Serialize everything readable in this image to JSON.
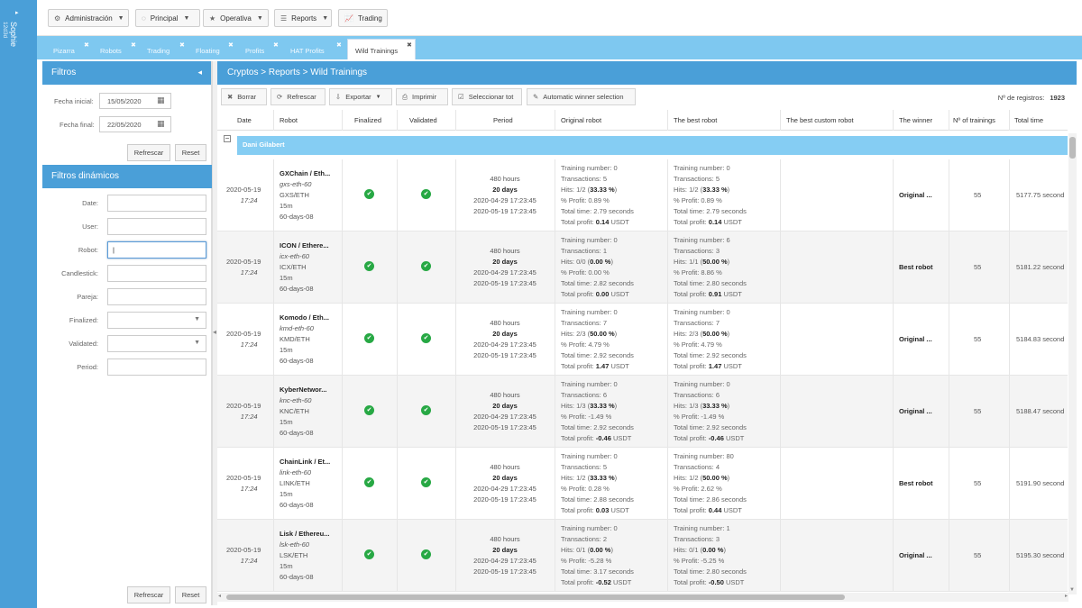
{
  "user": {
    "name": "Sophie",
    "sub": "12d3d"
  },
  "topmenu": [
    {
      "label": "Administración",
      "icon": "gear-icon",
      "glyph": "⚙",
      "dropdown": true
    },
    {
      "label": "Principal",
      "icon": "circle-icon",
      "glyph": "◌",
      "dropdown": true
    },
    {
      "label": "Operativa",
      "icon": "star-icon",
      "glyph": "★",
      "dropdown": true
    },
    {
      "label": "Reports",
      "icon": "list-icon",
      "glyph": "☰",
      "dropdown": true
    },
    {
      "label": "Trading",
      "icon": "chart-icon",
      "glyph": "📈",
      "dropdown": false
    }
  ],
  "tabs": [
    {
      "label": "Pizarra",
      "active": false
    },
    {
      "label": "Robots",
      "active": false
    },
    {
      "label": "Trading",
      "active": false
    },
    {
      "label": "Floating",
      "active": false
    },
    {
      "label": "Profits",
      "active": false
    },
    {
      "label": "HAT Profits",
      "active": false
    },
    {
      "label": "Wild Trainings",
      "active": true
    }
  ],
  "filters": {
    "title": "Filtros",
    "fecha_inicial_label": "Fecha inicial:",
    "fecha_inicial": "15/05/2020",
    "fecha_final_label": "Fecha final:",
    "fecha_final": "22/05/2020",
    "refresh_label": "Refrescar",
    "reset_label": "Reset",
    "dyn_title": "Filtros dinámicos",
    "dyn_fields": [
      {
        "label": "Date:",
        "type": "text"
      },
      {
        "label": "User:",
        "type": "text"
      },
      {
        "label": "Robot:",
        "type": "text",
        "focus": true
      },
      {
        "label": "Candlestick:",
        "type": "text"
      },
      {
        "label": "Pareja:",
        "type": "text"
      },
      {
        "label": "Finalized:",
        "type": "select"
      },
      {
        "label": "Validated:",
        "type": "select"
      },
      {
        "label": "Period:",
        "type": "text"
      }
    ]
  },
  "main": {
    "breadcrumb": "Cryptos > Reports > Wild Trainings",
    "toolbar": [
      {
        "label": "Borrar",
        "icon": "close-icon",
        "glyph": "✖"
      },
      {
        "label": "Refrescar",
        "icon": "refresh-icon",
        "glyph": "⟳"
      },
      {
        "label": "Exportar",
        "icon": "export-icon",
        "glyph": "⇩",
        "dropdown": true
      },
      {
        "label": "Imprimir",
        "icon": "print-icon",
        "glyph": "⎙"
      },
      {
        "label": "Seleccionar tot",
        "icon": "checkbox-icon",
        "glyph": "☑"
      },
      {
        "label": "Automatic winner selection",
        "icon": "wand-icon",
        "glyph": "✎"
      }
    ],
    "records_label": "Nº de registros:",
    "records_count": "1923",
    "columns": [
      "Date",
      "Robot",
      "Finalized",
      "Validated",
      "Period",
      "Original robot",
      "The best robot",
      "The best custom robot",
      "The winner",
      "Nº of trainings",
      "Total time"
    ],
    "group": "Dani Gilabert",
    "rows": [
      {
        "date": "2020-05-19",
        "time": "17:24",
        "robot_name": "GXChain / Eth...",
        "robot_id": "gxs-eth-60",
        "pair": "GXS/ETH",
        "candle": "15m",
        "period_id": "60-days-08",
        "finalized": true,
        "validated": true,
        "hours": "480 hours",
        "days": "20 days",
        "from": "2020-04-29 17:23:45",
        "to": "2020-05-19 17:23:45",
        "orig": {
          "tn": "Training number: 0",
          "tr": "Transactions: 5",
          "hits": "Hits: 1/2 (",
          "hits_b": "33.33 %",
          "profit": "% Profit: 0.89 %",
          "time": "Total time: 2.79 seconds",
          "tp": "Total profit: ",
          "tp_b": "0.14",
          "cur": " USDT"
        },
        "best": {
          "tn": "Training number: 0",
          "tr": "Transactions: 5",
          "hits": "Hits: 1/2 (",
          "hits_b": "33.33 %",
          "profit": "% Profit: 0.89 %",
          "time": "Total time: 2.79 seconds",
          "tp": "Total profit: ",
          "tp_b": "0.14",
          "cur": " USDT"
        },
        "winner": "Original ...",
        "trainings": "55",
        "total": "5177.75 second"
      },
      {
        "date": "2020-05-19",
        "time": "17:24",
        "robot_name": "ICON / Ethere...",
        "robot_id": "icx-eth-60",
        "pair": "ICX/ETH",
        "candle": "15m",
        "period_id": "60-days-08",
        "finalized": true,
        "validated": true,
        "hours": "480 hours",
        "days": "20 days",
        "from": "2020-04-29 17:23:45",
        "to": "2020-05-19 17:23:45",
        "orig": {
          "tn": "Training number: 0",
          "tr": "Transactions: 1",
          "hits": "Hits: 0/0 (",
          "hits_b": "0.00 %",
          "profit": "% Profit: 0.00 %",
          "time": "Total time: 2.82 seconds",
          "tp": "Total profit: ",
          "tp_b": "0.00",
          "cur": " USDT"
        },
        "best": {
          "tn": "Training number: 6",
          "tr": "Transactions: 3",
          "hits": "Hits: 1/1 (",
          "hits_b": "50.00 %",
          "profit": "% Profit: 8.86 %",
          "time": "Total time: 2.80 seconds",
          "tp": "Total profit: ",
          "tp_b": "0.91",
          "cur": " USDT"
        },
        "winner": "Best robot",
        "trainings": "55",
        "total": "5181.22 second"
      },
      {
        "date": "2020-05-19",
        "time": "17:24",
        "robot_name": "Komodo / Eth...",
        "robot_id": "kmd-eth-60",
        "pair": "KMD/ETH",
        "candle": "15m",
        "period_id": "60-days-08",
        "finalized": true,
        "validated": true,
        "hours": "480 hours",
        "days": "20 days",
        "from": "2020-04-29 17:23:45",
        "to": "2020-05-19 17:23:45",
        "orig": {
          "tn": "Training number: 0",
          "tr": "Transactions: 7",
          "hits": "Hits: 2/3 (",
          "hits_b": "50.00 %",
          "profit": "% Profit: 4.79 %",
          "time": "Total time: 2.92 seconds",
          "tp": "Total profit: ",
          "tp_b": "1.47",
          "cur": " USDT"
        },
        "best": {
          "tn": "Training number: 0",
          "tr": "Transactions: 7",
          "hits": "Hits: 2/3 (",
          "hits_b": "50.00 %",
          "profit": "% Profit: 4.79 %",
          "time": "Total time: 2.92 seconds",
          "tp": "Total profit: ",
          "tp_b": "1.47",
          "cur": " USDT"
        },
        "winner": "Original ...",
        "trainings": "55",
        "total": "5184.83 second"
      },
      {
        "date": "2020-05-19",
        "time": "17:24",
        "robot_name": "KyberNetwor...",
        "robot_id": "knc-eth-60",
        "pair": "KNC/ETH",
        "candle": "15m",
        "period_id": "60-days-08",
        "finalized": true,
        "validated": true,
        "hours": "480 hours",
        "days": "20 days",
        "from": "2020-04-29 17:23:45",
        "to": "2020-05-19 17:23:45",
        "orig": {
          "tn": "Training number: 0",
          "tr": "Transactions: 6",
          "hits": "Hits: 1/3 (",
          "hits_b": "33.33 %",
          "profit": "% Profit: -1.49 %",
          "time": "Total time: 2.92 seconds",
          "tp": "Total profit: ",
          "tp_b": "-0.46",
          "cur": " USDT"
        },
        "best": {
          "tn": "Training number: 0",
          "tr": "Transactions: 6",
          "hits": "Hits: 1/3 (",
          "hits_b": "33.33 %",
          "profit": "% Profit: -1.49 %",
          "time": "Total time: 2.92 seconds",
          "tp": "Total profit: ",
          "tp_b": "-0.46",
          "cur": " USDT"
        },
        "winner": "Original ...",
        "trainings": "55",
        "total": "5188.47 second"
      },
      {
        "date": "2020-05-19",
        "time": "17:24",
        "robot_name": "ChainLink / Et...",
        "robot_id": "link-eth-60",
        "pair": "LINK/ETH",
        "candle": "15m",
        "period_id": "60-days-08",
        "finalized": true,
        "validated": true,
        "hours": "480 hours",
        "days": "20 days",
        "from": "2020-04-29 17:23:45",
        "to": "2020-05-19 17:23:45",
        "orig": {
          "tn": "Training number: 0",
          "tr": "Transactions: 5",
          "hits": "Hits: 1/2 (",
          "hits_b": "33.33 %",
          "profit": "% Profit: 0.28 %",
          "time": "Total time: 2.88 seconds",
          "tp": "Total profit: ",
          "tp_b": "0.03",
          "cur": " USDT"
        },
        "best": {
          "tn": "Training number: 80",
          "tr": "Transactions: 4",
          "hits": "Hits: 1/2 (",
          "hits_b": "50.00 %",
          "profit": "% Profit: 2.62 %",
          "time": "Total time: 2.86 seconds",
          "tp": "Total profit: ",
          "tp_b": "0.44",
          "cur": " USDT"
        },
        "winner": "Best robot",
        "trainings": "55",
        "total": "5191.90 second"
      },
      {
        "date": "2020-05-19",
        "time": "17:24",
        "robot_name": "Lisk / Ethereu...",
        "robot_id": "lsk-eth-60",
        "pair": "LSK/ETH",
        "candle": "15m",
        "period_id": "60-days-08",
        "finalized": true,
        "validated": true,
        "hours": "480 hours",
        "days": "20 days",
        "from": "2020-04-29 17:23:45",
        "to": "2020-05-19 17:23:45",
        "orig": {
          "tn": "Training number: 0",
          "tr": "Transactions: 2",
          "hits": "Hits: 0/1 (",
          "hits_b": "0.00 %",
          "profit": "% Profit: -5.28 %",
          "time": "Total time: 3.17 seconds",
          "tp": "Total profit: ",
          "tp_b": "-0.52",
          "cur": " USDT"
        },
        "best": {
          "tn": "Training number: 1",
          "tr": "Transactions: 3",
          "hits": "Hits: 0/1 (",
          "hits_b": "0.00 %",
          "profit": "% Profit: -5.25 %",
          "time": "Total time: 2.80 seconds",
          "tp": "Total profit: ",
          "tp_b": "-0.50",
          "cur": " USDT"
        },
        "winner": "Original ...",
        "trainings": "55",
        "total": "5195.30 second"
      }
    ]
  },
  "colors": {
    "accent": "#4a9fd8",
    "tabbar": "#7ec8f0",
    "group": "#85cdf3",
    "check": "#27a844"
  }
}
